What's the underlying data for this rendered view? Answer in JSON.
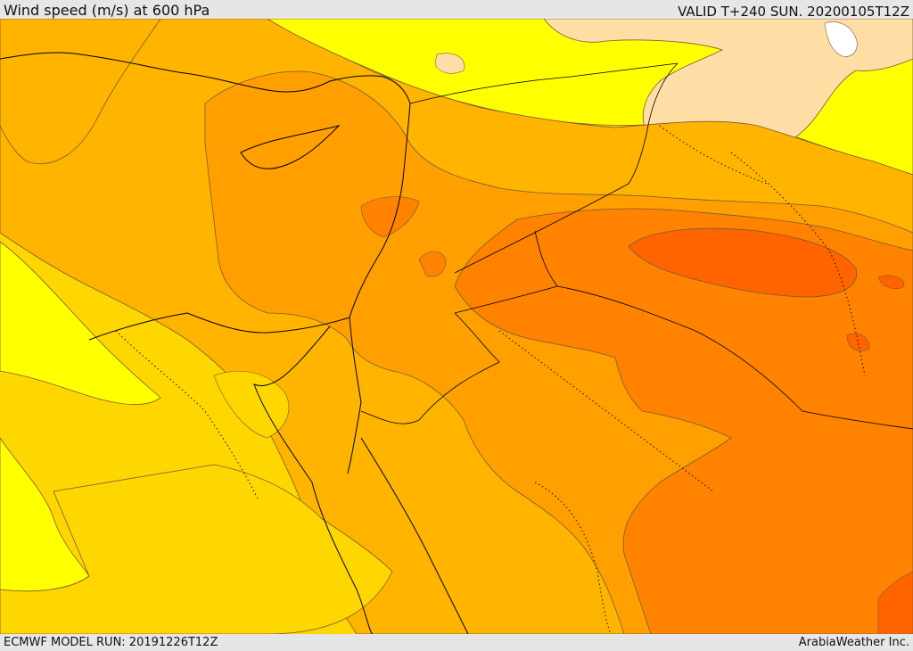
{
  "header": {
    "title": "Wind speed (m/s) at 600 hPa",
    "valid": "VALID T+240 SUN. 20200105T12Z"
  },
  "footer": {
    "model_run": "ECMWF MODEL RUN: 20191226T12Z",
    "credit": "ArabiaWeather Inc."
  },
  "palette": {
    "band_1": "#ffff00",
    "band_2": "#ffd700",
    "band_3": "#ffb400",
    "band_4": "#ffa000",
    "band_5": "#ff8200",
    "band_6": "#ff6400",
    "band_low": "#ffdea6",
    "band_zero": "#ffffff",
    "contour": "#7a5a3a",
    "coastline": "#000000"
  }
}
